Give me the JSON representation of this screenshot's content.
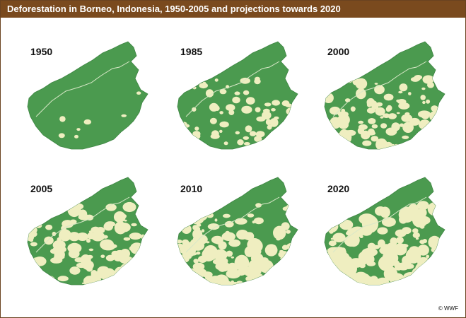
{
  "title": "Deforestation in Borneo, Indonesia, 1950-2005 and projections towards 2020",
  "credit": "© WWF",
  "colors": {
    "header_bg": "#7a4a1e",
    "forest": "#4b9a4f",
    "deforested": "#efeec0",
    "boundary_line": "#d9e8c8"
  },
  "maps": [
    {
      "year": "1950",
      "forest_cover": 0.96
    },
    {
      "year": "1985",
      "forest_cover": 0.74
    },
    {
      "year": "2000",
      "forest_cover": 0.6
    },
    {
      "year": "2005",
      "forest_cover": 0.5
    },
    {
      "year": "2010",
      "forest_cover": 0.43
    },
    {
      "year": "2020",
      "forest_cover": 0.33
    }
  ]
}
